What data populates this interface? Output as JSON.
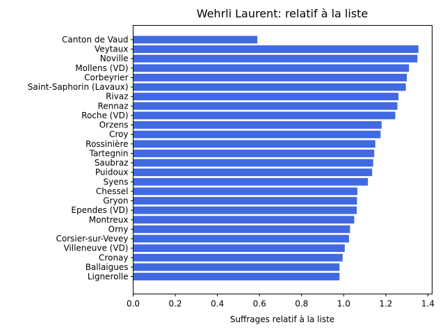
{
  "chart_data": {
    "type": "bar",
    "orientation": "horizontal",
    "title": "Wehrli Laurent: relatif à la liste",
    "xlabel": "Suffrages relatif à la liste",
    "ylabel": "",
    "xlim": [
      0,
      1.42
    ],
    "xticks": [
      0.0,
      0.2,
      0.4,
      0.6,
      0.8,
      1.0,
      1.2,
      1.4
    ],
    "xtick_labels": [
      "0.0",
      "0.2",
      "0.4",
      "0.6",
      "0.8",
      "1.0",
      "1.2",
      "1.4"
    ],
    "bar_color": "#4169e1",
    "grid": false,
    "categories": [
      "Canton de Vaud",
      "Veytaux",
      "Noville",
      "Mollens (VD)",
      "Corbeyrier",
      "Saint-Saphorin (Lavaux)",
      "Rivaz",
      "Rennaz",
      "Roche (VD)",
      "Orzens",
      "Croy",
      "Rossinière",
      "Tartegnin",
      "Saubraz",
      "Puidoux",
      "Syens",
      "Chessel",
      "Gryon",
      "Ependes (VD)",
      "Montreux",
      "Orny",
      "Corsier-sur-Vevey",
      "Villeneuve (VD)",
      "Cronay",
      "Ballaigues",
      "Lignerolle"
    ],
    "values": [
      0.59,
      1.355,
      1.35,
      1.31,
      1.3,
      1.295,
      1.26,
      1.255,
      1.245,
      1.18,
      1.175,
      1.15,
      1.145,
      1.14,
      1.135,
      1.115,
      1.065,
      1.063,
      1.062,
      1.05,
      1.03,
      1.025,
      1.005,
      0.995,
      0.98,
      0.98
    ]
  }
}
